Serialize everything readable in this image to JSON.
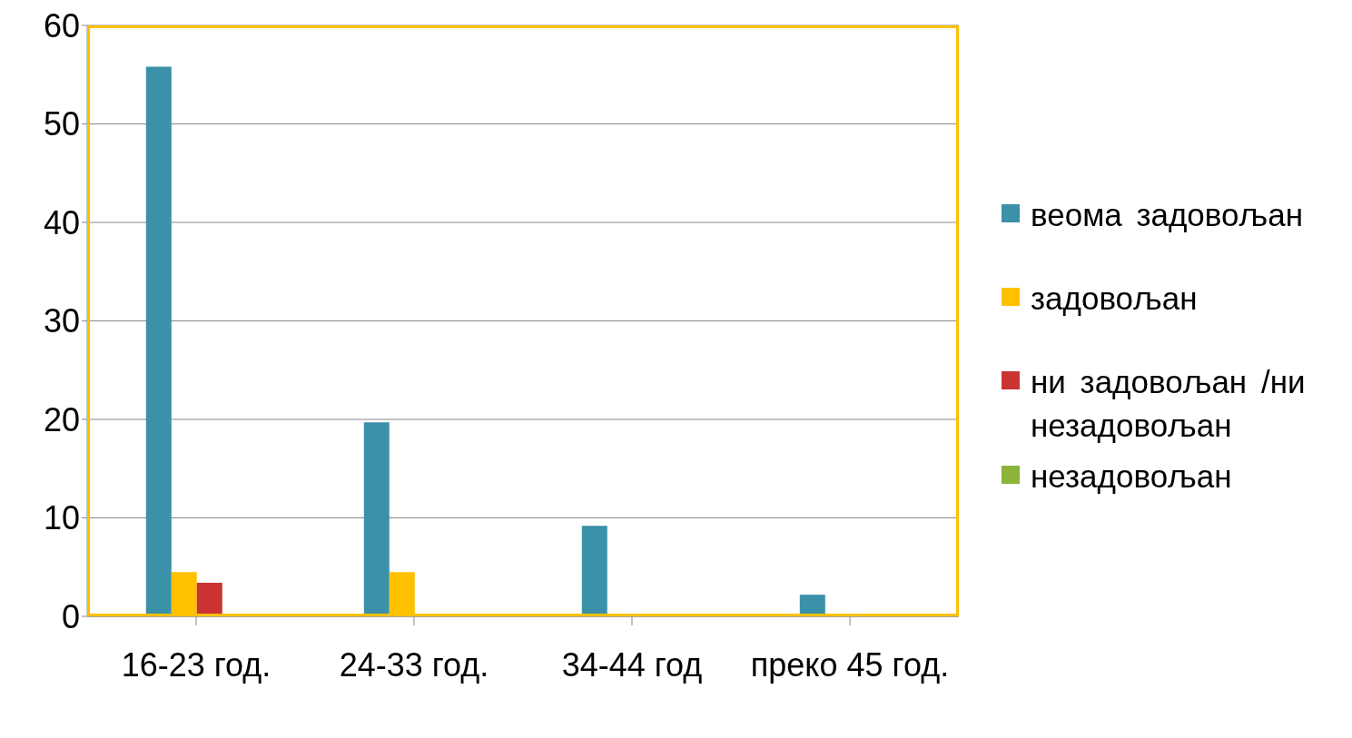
{
  "chart_data": {
    "type": "bar",
    "categories": [
      "16-23 год.",
      "24-33 год.",
      "34-44 год",
      "преко 45 год."
    ],
    "series": [
      {
        "name": "веома задовољан",
        "color": "#3a91a8",
        "values": [
          55.8,
          19.7,
          9.2,
          2.2
        ]
      },
      {
        "name": "задовољан",
        "color": "#ffc000",
        "values": [
          4.5,
          4.5,
          0,
          0
        ]
      },
      {
        "name": "ни задовољан /ни незадовољан",
        "color": "#cc3333",
        "values": [
          3.4,
          0,
          0,
          0
        ]
      },
      {
        "name": "незадовољан",
        "color": "#8cb33a",
        "values": [
          0,
          0,
          0,
          0
        ]
      }
    ],
    "ylim": [
      0,
      60
    ],
    "yticks": [
      0,
      10,
      20,
      30,
      40,
      50,
      60
    ],
    "grid": "y",
    "legend": "right"
  }
}
